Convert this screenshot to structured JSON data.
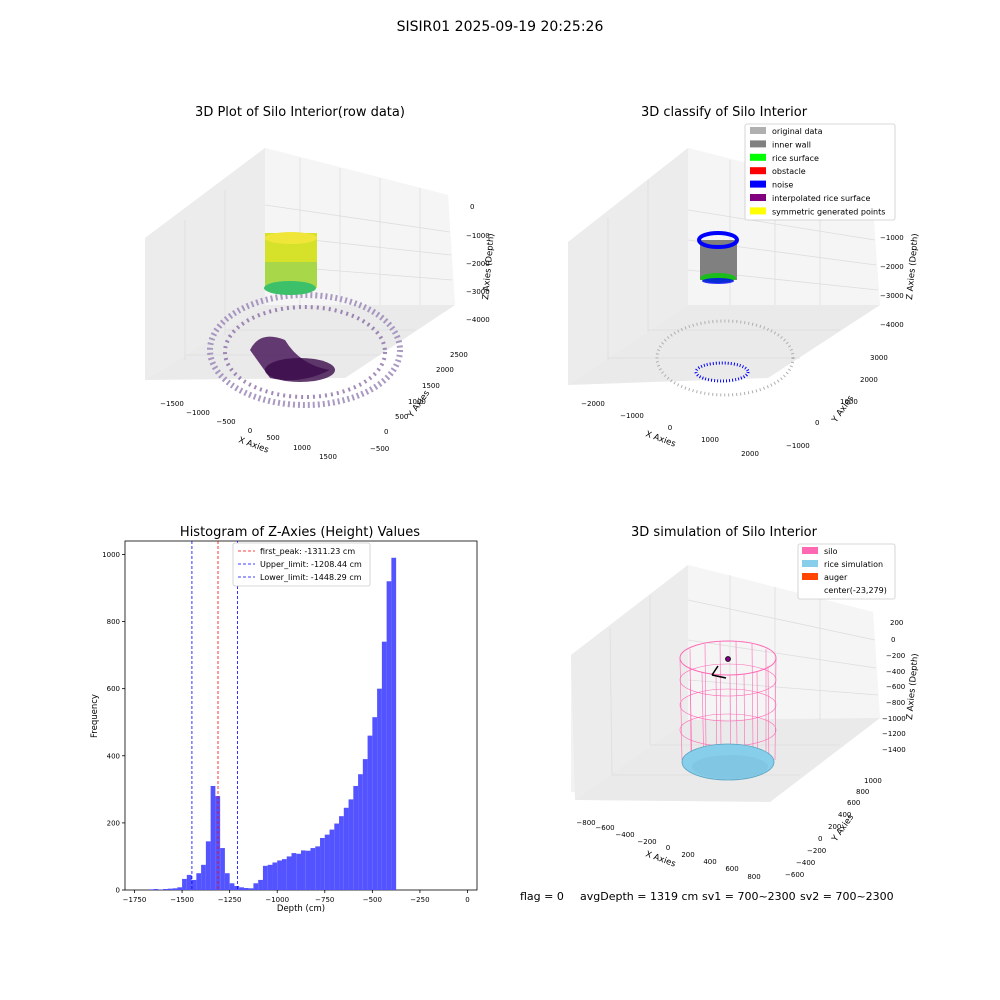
{
  "suptitle": "SISIR01 2025-09-19 20:25:26",
  "status_line": {
    "flag": "flag = 0",
    "avg_depth": "avgDepth = 1319 cm",
    "sv1": "sv1 = 700~2300",
    "sv2": "sv2 = 700~2300"
  },
  "colors": {
    "hist_bar": "#5050ff",
    "first_peak_line": "#ff0000",
    "limit_line": "#0000ff",
    "pane": "#f2f2f2",
    "grid": "#e0e0e0",
    "silo": "#ff69b4",
    "rice": "#87ceeb",
    "auger": "#ff4500"
  },
  "chart_data": [
    {
      "type": "scatter",
      "title": "3D Plot of Silo Interior(row data)",
      "xlabel": "X Axies",
      "ylabel": "Y Axies",
      "zlabel": "Z Axies (Depth)",
      "x_ticks": [
        "−1500",
        "−1000",
        "−500",
        "0",
        "500",
        "1000",
        "1500"
      ],
      "y_ticks": [
        "−500",
        "0",
        "500",
        "1000",
        "1500",
        "2000",
        "2500"
      ],
      "z_ticks": [
        "0",
        "−1000",
        "−2000",
        "−3000",
        "−4000"
      ],
      "colormap": "viridis"
    },
    {
      "type": "scatter",
      "title": "3D classify of Silo Interior",
      "xlabel": "X Axies",
      "ylabel": "Y Axies",
      "zlabel": "Z Axies (Depth)",
      "x_ticks": [
        "−2000",
        "−1000",
        "0",
        "1000",
        "2000"
      ],
      "y_ticks": [
        "−1000",
        "0",
        "1000",
        "2000",
        "3000"
      ],
      "z_ticks": [
        "0",
        "−1000",
        "−2000",
        "−3000",
        "−4000"
      ],
      "legend_position": "top-right",
      "legend": [
        {
          "label": "original data",
          "color": "#b0b0b0"
        },
        {
          "label": "inner wall",
          "color": "#808080"
        },
        {
          "label": "rice surface",
          "color": "#00ff00"
        },
        {
          "label": "obstacle",
          "color": "#ff0000"
        },
        {
          "label": "noise",
          "color": "#0000ff"
        },
        {
          "label": "interpolated rice surface",
          "color": "#800080"
        },
        {
          "label": "symmetric generated points",
          "color": "#ffff00"
        }
      ]
    },
    {
      "type": "bar",
      "title": "Histogram of Z-Axies (Height) Values",
      "xlabel": "Depth (cm)",
      "ylabel": "Frequency",
      "xlim": [
        -1800,
        50
      ],
      "ylim": [
        0,
        1040
      ],
      "bin_width": 25,
      "x_ticks": [
        -1750,
        -1500,
        -1250,
        -1000,
        -750,
        -500,
        -250,
        0
      ],
      "x_tick_labels": [
        "−1750",
        "−1500",
        "−1250",
        "−1000",
        "−750",
        "−500",
        "−250",
        "0"
      ],
      "y_ticks": [
        0,
        200,
        400,
        600,
        800,
        1000
      ],
      "bins": [
        {
          "x0": -1675,
          "count": 2
        },
        {
          "x0": -1650,
          "count": 3
        },
        {
          "x0": -1625,
          "count": 1
        },
        {
          "x0": -1600,
          "count": 3
        },
        {
          "x0": -1575,
          "count": 4
        },
        {
          "x0": -1550,
          "count": 5
        },
        {
          "x0": -1525,
          "count": 8
        },
        {
          "x0": -1500,
          "count": 33
        },
        {
          "x0": -1475,
          "count": 45
        },
        {
          "x0": -1450,
          "count": 30
        },
        {
          "x0": -1425,
          "count": 50
        },
        {
          "x0": -1400,
          "count": 75
        },
        {
          "x0": -1375,
          "count": 145
        },
        {
          "x0": -1350,
          "count": 310
        },
        {
          "x0": -1325,
          "count": 280
        },
        {
          "x0": -1300,
          "count": 125
        },
        {
          "x0": -1275,
          "count": 50
        },
        {
          "x0": -1250,
          "count": 20
        },
        {
          "x0": -1225,
          "count": 12
        },
        {
          "x0": -1200,
          "count": 8
        },
        {
          "x0": -1175,
          "count": 6
        },
        {
          "x0": -1150,
          "count": 5
        },
        {
          "x0": -1125,
          "count": 20
        },
        {
          "x0": -1100,
          "count": 30
        },
        {
          "x0": -1075,
          "count": 72
        },
        {
          "x0": -1050,
          "count": 75
        },
        {
          "x0": -1025,
          "count": 82
        },
        {
          "x0": -1000,
          "count": 88
        },
        {
          "x0": -975,
          "count": 92
        },
        {
          "x0": -950,
          "count": 100
        },
        {
          "x0": -925,
          "count": 110
        },
        {
          "x0": -900,
          "count": 108
        },
        {
          "x0": -875,
          "count": 118
        },
        {
          "x0": -850,
          "count": 117
        },
        {
          "x0": -825,
          "count": 125
        },
        {
          "x0": -800,
          "count": 130
        },
        {
          "x0": -775,
          "count": 155
        },
        {
          "x0": -750,
          "count": 165
        },
        {
          "x0": -725,
          "count": 180
        },
        {
          "x0": -700,
          "count": 198
        },
        {
          "x0": -675,
          "count": 220
        },
        {
          "x0": -650,
          "count": 245
        },
        {
          "x0": -625,
          "count": 270
        },
        {
          "x0": -600,
          "count": 310
        },
        {
          "x0": -575,
          "count": 345
        },
        {
          "x0": -550,
          "count": 390
        },
        {
          "x0": -525,
          "count": 460
        },
        {
          "x0": -500,
          "count": 515
        },
        {
          "x0": -475,
          "count": 600
        },
        {
          "x0": -450,
          "count": 740
        },
        {
          "x0": -425,
          "count": 920
        },
        {
          "x0": -400,
          "count": 990
        }
      ],
      "vlines": [
        {
          "label": "first_peak: -1311.23 cm",
          "x": -1311.23,
          "color": "#ff0000"
        },
        {
          "label": "Upper_limit: -1208.44 cm",
          "x": -1208.44,
          "color": "#0000ff"
        },
        {
          "label": "Lower_limit: -1448.29 cm",
          "x": -1448.29,
          "color": "#0000ff"
        }
      ],
      "legend_position": "top-center"
    },
    {
      "type": "scatter",
      "title": "3D simulation of Silo Interior",
      "xlabel": "X Axies",
      "ylabel": "Y Axies",
      "zlabel": "Z Axies (Depth)",
      "x_ticks": [
        "−800",
        "−600",
        "−400",
        "−200",
        "0",
        "200",
        "400",
        "600",
        "800"
      ],
      "y_ticks": [
        "−600",
        "−400",
        "−200",
        "0",
        "200",
        "400",
        "600",
        "800",
        "1000"
      ],
      "z_ticks": [
        "200",
        "0",
        "−200",
        "−400",
        "−600",
        "−800",
        "−1000",
        "−1200",
        "−1400"
      ],
      "legend_position": "top-right",
      "legend": [
        {
          "label": "silo",
          "color": "#ff69b4"
        },
        {
          "label": "rice simulation",
          "color": "#87ceeb"
        },
        {
          "label": "auger",
          "color": "#ff4500"
        },
        {
          "label": "center(-23,279)",
          "color": ""
        }
      ]
    }
  ]
}
